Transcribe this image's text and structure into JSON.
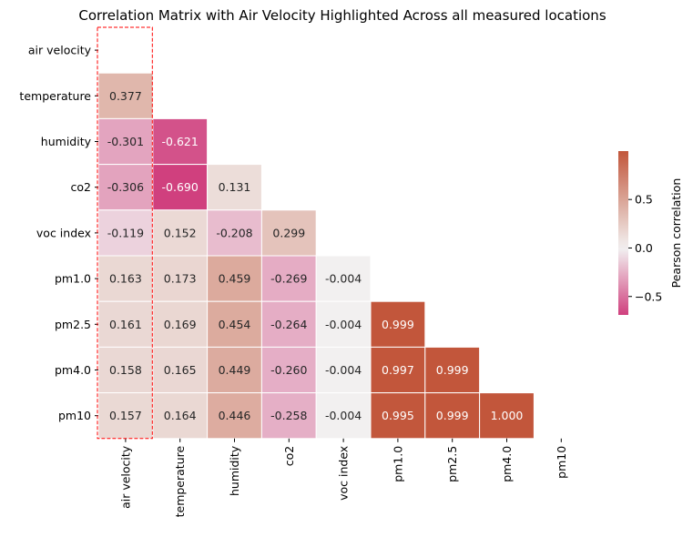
{
  "chart_data": {
    "type": "heatmap",
    "title": "Correlation Matrix with Air Velocity Highlighted Across all measured locations",
    "variables": [
      "air velocity",
      "temperature",
      "humidity",
      "co2",
      "voc index",
      "pm1.0",
      "pm2.5",
      "pm4.0",
      "pm10"
    ],
    "matrix": [
      [
        null,
        null,
        null,
        null,
        null,
        null,
        null,
        null,
        null
      ],
      [
        0.377,
        null,
        null,
        null,
        null,
        null,
        null,
        null,
        null
      ],
      [
        -0.301,
        -0.621,
        null,
        null,
        null,
        null,
        null,
        null,
        null
      ],
      [
        -0.306,
        -0.69,
        0.131,
        null,
        null,
        null,
        null,
        null,
        null
      ],
      [
        -0.119,
        0.152,
        -0.208,
        0.299,
        null,
        null,
        null,
        null,
        null
      ],
      [
        0.163,
        0.173,
        0.459,
        -0.269,
        -0.004,
        null,
        null,
        null,
        null
      ],
      [
        0.161,
        0.169,
        0.454,
        -0.264,
        -0.004,
        0.999,
        null,
        null,
        null
      ],
      [
        0.158,
        0.165,
        0.449,
        -0.26,
        -0.004,
        0.997,
        0.999,
        null,
        null
      ],
      [
        0.157,
        0.164,
        0.446,
        -0.258,
        -0.004,
        0.995,
        0.999,
        1.0,
        null
      ]
    ],
    "labels": [
      [
        null,
        null,
        null,
        null,
        null,
        null,
        null,
        null,
        null
      ],
      [
        "0.377",
        null,
        null,
        null,
        null,
        null,
        null,
        null,
        null
      ],
      [
        "-0.301",
        "-0.621",
        null,
        null,
        null,
        null,
        null,
        null,
        null
      ],
      [
        "-0.306",
        "-0.690",
        "0.131",
        null,
        null,
        null,
        null,
        null,
        null
      ],
      [
        "-0.119",
        "0.152",
        "-0.208",
        "0.299",
        null,
        null,
        null,
        null,
        null
      ],
      [
        "0.163",
        "0.173",
        "0.459",
        "-0.269",
        "-0.004",
        null,
        null,
        null,
        null
      ],
      [
        "0.161",
        "0.169",
        "0.454",
        "-0.264",
        "-0.004",
        "0.999",
        null,
        null,
        null
      ],
      [
        "0.158",
        "0.165",
        "0.449",
        "-0.260",
        "-0.004",
        "0.997",
        "0.999",
        null,
        null
      ],
      [
        "0.157",
        "0.164",
        "0.446",
        "-0.258",
        "-0.004",
        "0.995",
        "0.999",
        "1.000",
        null
      ]
    ],
    "mask": "upper-triangle-including-diagonal",
    "highlighted_column": "air velocity",
    "highlight_color": "#ff0000",
    "colormap": {
      "type": "diverging",
      "vmin": -0.69,
      "vmax": 0.999,
      "center": 0,
      "negative_color": "#d0407e",
      "center_color": "#f2f1f1",
      "positive_color": "#c2563b"
    },
    "colorbar": {
      "label": "Pearson correlation",
      "ticks": [
        -0.5,
        0.0,
        0.5
      ],
      "tick_labels": [
        "−0.5",
        "0.0",
        "0.5"
      ],
      "placement": "right"
    },
    "grid": false
  }
}
